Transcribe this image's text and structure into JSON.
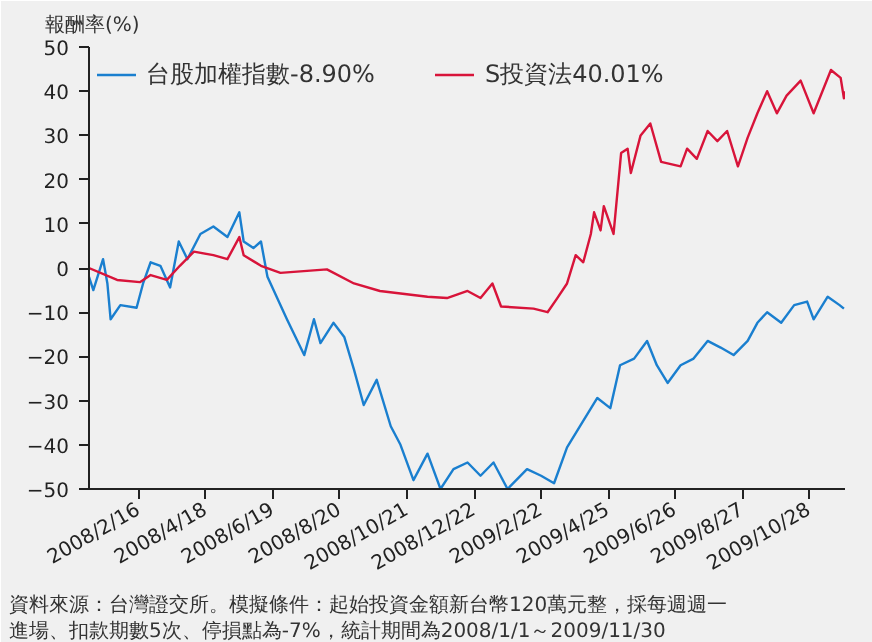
{
  "chart_data": {
    "type": "line",
    "ylabel": "報酬率(%)",
    "xlim": [
      "2008-01-01",
      "2009-11-30"
    ],
    "xticks": [
      {
        "value": "2008-02-16",
        "label": "2008/2/16"
      },
      {
        "value": "2008-04-18",
        "label": "2008/4/18"
      },
      {
        "value": "2008-06-19",
        "label": "2008/6/19"
      },
      {
        "value": "2008-08-20",
        "label": "2008/8/20"
      },
      {
        "value": "2008-10-21",
        "label": "2008/10/21"
      },
      {
        "value": "2008-12-22",
        "label": "2008/12/22"
      },
      {
        "value": "2009-02-22",
        "label": "2009/2/22"
      },
      {
        "value": "2009-04-25",
        "label": "2009/4/25"
      },
      {
        "value": "2009-06-26",
        "label": "2009/6/26"
      },
      {
        "value": "2009-08-27",
        "label": "2009/8/27"
      },
      {
        "value": "2009-10-28",
        "label": "2009/10/28"
      }
    ],
    "ylim": [
      -50,
      50
    ],
    "yticks": [
      -50,
      -40,
      -30,
      -20,
      -10,
      0,
      10,
      20,
      30,
      40,
      50
    ],
    "grid": false,
    "legend": "top left",
    "marker": "none",
    "line_style": "solid",
    "series": [
      {
        "name": "台股加權指數-8.90%",
        "color": "#1a7fcf",
        "x": [
          "2008-01-01",
          "2008-01-05",
          "2008-01-14",
          "2008-01-18",
          "2008-01-21",
          "2008-01-30",
          "2008-02-14",
          "2008-02-20",
          "2008-02-27",
          "2008-03-07",
          "2008-03-16",
          "2008-03-24",
          "2008-04-01",
          "2008-04-13",
          "2008-04-25",
          "2008-05-08",
          "2008-05-19",
          "2008-05-23",
          "2008-06-01",
          "2008-06-08",
          "2008-06-14",
          "2008-07-02",
          "2008-07-18",
          "2008-07-27",
          "2008-08-02",
          "2008-08-14",
          "2008-08-24",
          "2008-09-02",
          "2008-09-11",
          "2008-09-23",
          "2008-10-06",
          "2008-10-15",
          "2008-10-27",
          "2008-11-09",
          "2008-11-21",
          "2008-12-03",
          "2008-12-16",
          "2008-12-28",
          "2009-01-09",
          "2009-01-22",
          "2009-02-09",
          "2009-02-22",
          "2009-03-06",
          "2009-03-18",
          "2009-03-30",
          "2009-04-15",
          "2009-04-27",
          "2009-05-06",
          "2009-05-19",
          "2009-05-31",
          "2009-06-09",
          "2009-06-19",
          "2009-07-01",
          "2009-07-13",
          "2009-07-26",
          "2009-08-07",
          "2009-08-19",
          "2009-09-01",
          "2009-09-10",
          "2009-09-19",
          "2009-10-02",
          "2009-10-14",
          "2009-10-26",
          "2009-11-01",
          "2009-11-14",
          "2009-11-25",
          "2009-11-29"
        ],
        "values": [
          -2,
          -5,
          2,
          -3.5,
          -11.6,
          -8.4,
          -9,
          -3.5,
          1.3,
          0.5,
          -4.4,
          6,
          2,
          7.7,
          9.4,
          7,
          12.6,
          6,
          4.5,
          6,
          -2,
          -11.6,
          -19.7,
          -11.6,
          -17,
          -12.4,
          -15.6,
          -23,
          -31,
          -25.3,
          -35.8,
          -40,
          -48,
          -42,
          -50,
          -45.5,
          -44,
          -47,
          -44,
          -50,
          -45.5,
          -47,
          -48.7,
          -40.6,
          -35.8,
          -29.4,
          -31.7,
          -22,
          -20.5,
          -16.5,
          -22,
          -26,
          -22,
          -20.5,
          -16.5,
          -18,
          -19.7,
          -16.5,
          -12.4,
          -10,
          -12.4,
          -8.4,
          -7.6,
          -11.6,
          -6.5,
          -8.4,
          -9.2
        ]
      },
      {
        "name": "S投資法40.01%",
        "color": "#d8143a",
        "x": [
          "2008-01-01",
          "2008-01-27",
          "2008-02-17",
          "2008-02-27",
          "2008-03-13",
          "2008-03-25",
          "2008-04-07",
          "2008-04-25",
          "2008-05-08",
          "2008-05-19",
          "2008-05-23",
          "2008-06-08",
          "2008-06-26",
          "2008-08-08",
          "2008-09-02",
          "2008-09-26",
          "2008-11-09",
          "2008-11-27",
          "2008-12-16",
          "2008-12-28",
          "2009-01-08",
          "2009-01-16",
          "2009-02-15",
          "2009-02-28",
          "2009-03-09",
          "2009-03-18",
          "2009-03-26",
          "2009-04-02",
          "2009-04-09",
          "2009-04-12",
          "2009-04-18",
          "2009-04-21",
          "2009-04-30",
          "2009-05-07",
          "2009-05-13",
          "2009-05-16",
          "2009-05-25",
          "2009-06-03",
          "2009-06-13",
          "2009-07-01",
          "2009-07-07",
          "2009-07-16",
          "2009-07-26",
          "2009-08-04",
          "2009-08-13",
          "2009-08-23",
          "2009-09-01",
          "2009-09-10",
          "2009-09-19",
          "2009-09-28",
          "2009-10-07",
          "2009-10-20",
          "2009-11-01",
          "2009-11-17",
          "2009-11-26",
          "2009-11-29",
          "2009-11-30"
        ],
        "values": [
          0,
          -2.7,
          -3.2,
          -1.6,
          -2.7,
          0.5,
          3.7,
          2.9,
          2,
          7,
          2.9,
          0.5,
          -1.1,
          -0.3,
          -3.5,
          -5.2,
          -6.5,
          -6.8,
          -5.2,
          -6.8,
          -3.5,
          -8.7,
          -9.2,
          -10,
          -6.8,
          -3.5,
          2.9,
          1.3,
          7.7,
          12.6,
          8.5,
          14,
          7.7,
          26,
          27,
          21.5,
          30,
          32.7,
          24,
          23,
          27,
          24.7,
          31,
          28.7,
          31,
          23,
          29.5,
          35,
          40,
          35,
          39,
          42.4,
          35,
          44.8,
          43,
          38.4,
          40
        ]
      }
    ],
    "annotations": [
      "資料來源：台灣證交所。模擬條件：起始投資金額新台幣120萬元整，採每週週一",
      "進場、扣款期數5次、停損點為-7%，統計期間為2008/1/1～2009/11/30"
    ]
  }
}
